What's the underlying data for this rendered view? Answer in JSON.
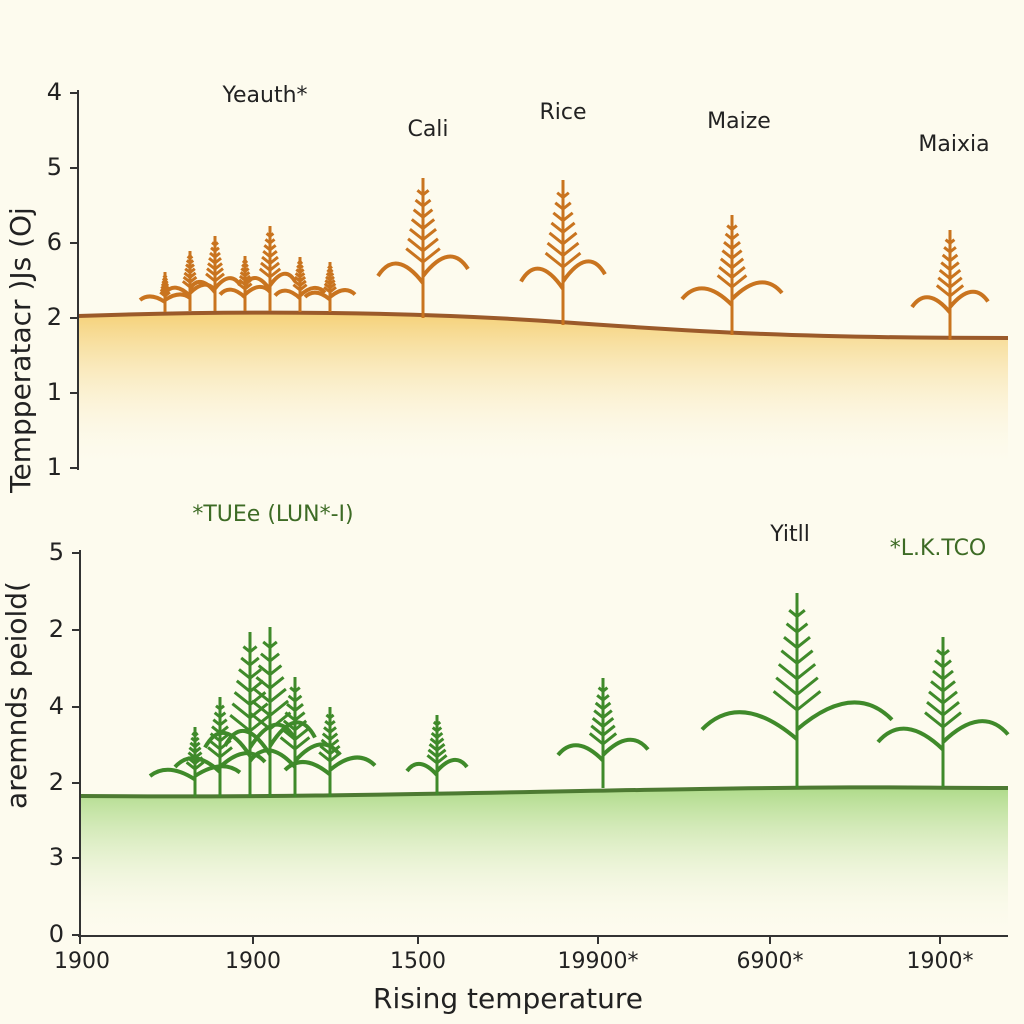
{
  "top_panel": {
    "axis_title": "Tempperatacr )Js (Oj",
    "axis_labels": [
      "4",
      "5",
      "6",
      "2",
      "1",
      "1"
    ],
    "labels": [
      "Yeauth*",
      "Cali",
      "Rice",
      "Maize",
      "Maixia"
    ]
  },
  "bottom_panel": {
    "axis_title": "aremnds peiold(",
    "axis_labels": [
      "5",
      "2",
      "4",
      "2",
      "3",
      "0"
    ],
    "labels": [
      "*TUEe (LUN*-I)",
      "Yitll",
      "*L.K.TCO"
    ]
  },
  "x_axis": {
    "labels": [
      "1900",
      "1900",
      "1500",
      "19900*",
      "6900*",
      "1900*"
    ],
    "title": "Rising temperature"
  }
}
